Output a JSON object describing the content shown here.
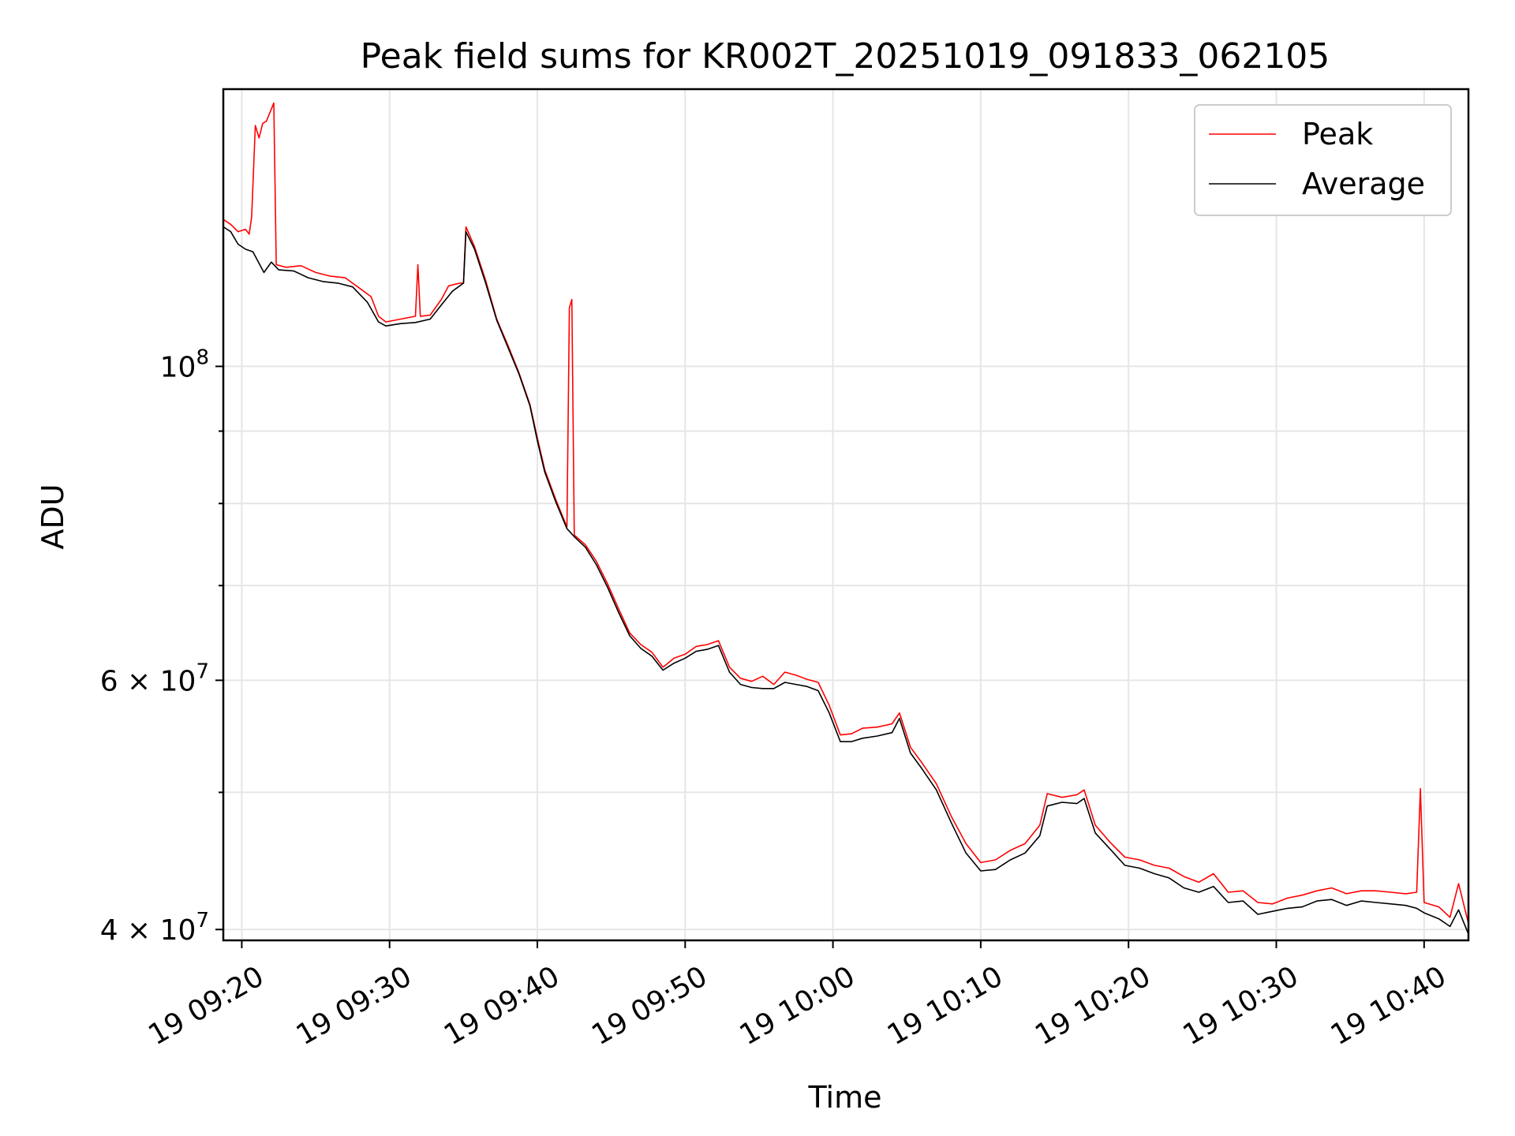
{
  "chart_data": {
    "type": "line",
    "title": "Peak field sums for KR002T_20251019_091833_062105",
    "xlabel": "Time",
    "ylabel": "ADU",
    "yscale": "log",
    "grid": true,
    "legend_position": "top-right",
    "xlim": [
      "2025-10-19T09:18:45",
      "2025-10-19T10:43:00"
    ],
    "ylim": [
      39300000,
      157000000
    ],
    "x_ticks": [
      {
        "t": "2025-10-19T09:20",
        "label": "19 09:20"
      },
      {
        "t": "2025-10-19T09:30",
        "label": "19 09:30"
      },
      {
        "t": "2025-10-19T09:40",
        "label": "19 09:40"
      },
      {
        "t": "2025-10-19T09:50",
        "label": "19 09:50"
      },
      {
        "t": "2025-10-19T10:00",
        "label": "19 10:00"
      },
      {
        "t": "2025-10-19T10:10",
        "label": "19 10:10"
      },
      {
        "t": "2025-10-19T10:20",
        "label": "19 10:20"
      },
      {
        "t": "2025-10-19T10:30",
        "label": "19 10:30"
      },
      {
        "t": "2025-10-19T10:40",
        "label": "19 10:40"
      }
    ],
    "y_ticks": [
      {
        "value": 100000000,
        "base": "10",
        "exp": "8",
        "mant": ""
      },
      {
        "value": 60000000,
        "base": "10",
        "exp": "7",
        "mant": "6 × "
      },
      {
        "value": 40000000,
        "base": "10",
        "exp": "7",
        "mant": "4 × "
      }
    ],
    "y_minor_ticks": [
      50000000,
      70000000,
      80000000,
      90000000
    ],
    "series": [
      {
        "name": "Peak",
        "color": "#ff0000",
        "points": [
          [
            "2025-10-19T09:18:45",
            127000000
          ],
          [
            "2025-10-19T09:19:15",
            126000000
          ],
          [
            "2025-10-19T09:19:45",
            124500000
          ],
          [
            "2025-10-19T09:20:15",
            125000000
          ],
          [
            "2025-10-19T09:20:30",
            124000000
          ],
          [
            "2025-10-19T09:20:40",
            127500000
          ],
          [
            "2025-10-19T09:20:55",
            148000000
          ],
          [
            "2025-10-19T09:21:10",
            145000000
          ],
          [
            "2025-10-19T09:21:25",
            148500000
          ],
          [
            "2025-10-19T09:21:40",
            149000000
          ],
          [
            "2025-10-19T09:22:00",
            152000000
          ],
          [
            "2025-10-19T09:22:10",
            153500000
          ],
          [
            "2025-10-19T09:22:20",
            118000000
          ],
          [
            "2025-10-19T09:23:00",
            117500000
          ],
          [
            "2025-10-19T09:24:00",
            117800000
          ],
          [
            "2025-10-19T09:25:00",
            116500000
          ],
          [
            "2025-10-19T09:26:00",
            115800000
          ],
          [
            "2025-10-19T09:27:00",
            115500000
          ],
          [
            "2025-10-19T09:28:00",
            113500000
          ],
          [
            "2025-10-19T09:28:45",
            112000000
          ],
          [
            "2025-10-19T09:29:15",
            108500000
          ],
          [
            "2025-10-19T09:29:45",
            107500000
          ],
          [
            "2025-10-19T09:30:45",
            108000000
          ],
          [
            "2025-10-19T09:31:45",
            108500000
          ],
          [
            "2025-10-19T09:31:55",
            118000000
          ],
          [
            "2025-10-19T09:32:05",
            108500000
          ],
          [
            "2025-10-19T09:32:45",
            108700000
          ],
          [
            "2025-10-19T09:33:30",
            111500000
          ],
          [
            "2025-10-19T09:34:00",
            114000000
          ],
          [
            "2025-10-19T09:34:45",
            114500000
          ],
          [
            "2025-10-19T09:35:00",
            114500000
          ],
          [
            "2025-10-19T09:35:10",
            125500000
          ],
          [
            "2025-10-19T09:35:45",
            121500000
          ],
          [
            "2025-10-19T09:36:30",
            115000000
          ],
          [
            "2025-10-19T09:37:15",
            108000000
          ],
          [
            "2025-10-19T09:38:00",
            103500000
          ],
          [
            "2025-10-19T09:38:45",
            99000000
          ],
          [
            "2025-10-19T09:39:30",
            94000000
          ],
          [
            "2025-10-19T09:40:00",
            89000000
          ],
          [
            "2025-10-19T09:40:30",
            84500000
          ],
          [
            "2025-10-19T09:41:15",
            80500000
          ],
          [
            "2025-10-19T09:42:00",
            77000000
          ],
          [
            "2025-10-19T09:42:10",
            110000000
          ],
          [
            "2025-10-19T09:42:20",
            111500000
          ],
          [
            "2025-10-19T09:42:30",
            76000000
          ],
          [
            "2025-10-19T09:43:15",
            74800000
          ],
          [
            "2025-10-19T09:44:00",
            72800000
          ],
          [
            "2025-10-19T09:44:45",
            70200000
          ],
          [
            "2025-10-19T09:45:30",
            67400000
          ],
          [
            "2025-10-19T09:46:15",
            64800000
          ],
          [
            "2025-10-19T09:47:00",
            63600000
          ],
          [
            "2025-10-19T09:47:45",
            62800000
          ],
          [
            "2025-10-19T09:48:30",
            61300000
          ],
          [
            "2025-10-19T09:49:15",
            62200000
          ],
          [
            "2025-10-19T09:50:00",
            62600000
          ],
          [
            "2025-10-19T09:50:45",
            63400000
          ],
          [
            "2025-10-19T09:51:30",
            63600000
          ],
          [
            "2025-10-19T09:52:15",
            64000000
          ],
          [
            "2025-10-19T09:53:00",
            61300000
          ],
          [
            "2025-10-19T09:53:45",
            60200000
          ],
          [
            "2025-10-19T09:54:30",
            59900000
          ],
          [
            "2025-10-19T09:55:15",
            60400000
          ],
          [
            "2025-10-19T09:56:00",
            59600000
          ],
          [
            "2025-10-19T09:56:45",
            60800000
          ],
          [
            "2025-10-19T09:57:30",
            60500000
          ],
          [
            "2025-10-19T09:58:15",
            60100000
          ],
          [
            "2025-10-19T09:59:00",
            59800000
          ],
          [
            "2025-10-19T09:59:45",
            57600000
          ],
          [
            "2025-10-19T10:00:30",
            54900000
          ],
          [
            "2025-10-19T10:01:15",
            55000000
          ],
          [
            "2025-10-19T10:02:00",
            55500000
          ],
          [
            "2025-10-19T10:03:00",
            55600000
          ],
          [
            "2025-10-19T10:04:00",
            55900000
          ],
          [
            "2025-10-19T10:04:30",
            56900000
          ],
          [
            "2025-10-19T10:05:15",
            53800000
          ],
          [
            "2025-10-19T10:06:00",
            52500000
          ],
          [
            "2025-10-19T10:07:00",
            50700000
          ],
          [
            "2025-10-19T10:08:00",
            48100000
          ],
          [
            "2025-10-19T10:09:00",
            46000000
          ],
          [
            "2025-10-19T10:10:00",
            44600000
          ],
          [
            "2025-10-19T10:11:00",
            44800000
          ],
          [
            "2025-10-19T10:12:00",
            45500000
          ],
          [
            "2025-10-19T10:13:00",
            46000000
          ],
          [
            "2025-10-19T10:14:00",
            47400000
          ],
          [
            "2025-10-19T10:14:30",
            49900000
          ],
          [
            "2025-10-19T10:15:30",
            49600000
          ],
          [
            "2025-10-19T10:16:30",
            49800000
          ],
          [
            "2025-10-19T10:17:00",
            50200000
          ],
          [
            "2025-10-19T10:17:45",
            47400000
          ],
          [
            "2025-10-19T10:18:45",
            46100000
          ],
          [
            "2025-10-19T10:19:45",
            45000000
          ],
          [
            "2025-10-19T10:20:45",
            44800000
          ],
          [
            "2025-10-19T10:21:45",
            44400000
          ],
          [
            "2025-10-19T10:22:45",
            44200000
          ],
          [
            "2025-10-19T10:23:45",
            43600000
          ],
          [
            "2025-10-19T10:24:45",
            43200000
          ],
          [
            "2025-10-19T10:25:45",
            43800000
          ],
          [
            "2025-10-19T10:26:45",
            42500000
          ],
          [
            "2025-10-19T10:27:45",
            42600000
          ],
          [
            "2025-10-19T10:28:45",
            41800000
          ],
          [
            "2025-10-19T10:29:45",
            41700000
          ],
          [
            "2025-10-19T10:30:45",
            42100000
          ],
          [
            "2025-10-19T10:31:45",
            42300000
          ],
          [
            "2025-10-19T10:32:45",
            42600000
          ],
          [
            "2025-10-19T10:33:45",
            42800000
          ],
          [
            "2025-10-19T10:34:45",
            42400000
          ],
          [
            "2025-10-19T10:35:45",
            42600000
          ],
          [
            "2025-10-19T10:36:45",
            42600000
          ],
          [
            "2025-10-19T10:37:45",
            42500000
          ],
          [
            "2025-10-19T10:38:45",
            42400000
          ],
          [
            "2025-10-19T10:39:30",
            42500000
          ],
          [
            "2025-10-19T10:39:45",
            50300000
          ],
          [
            "2025-10-19T10:40:00",
            41800000
          ],
          [
            "2025-10-19T10:41:00",
            41500000
          ],
          [
            "2025-10-19T10:41:45",
            40800000
          ],
          [
            "2025-10-19T10:42:20",
            43100000
          ],
          [
            "2025-10-19T10:43:00",
            40400000
          ]
        ]
      },
      {
        "name": "Average",
        "color": "#000000",
        "points": [
          [
            "2025-10-19T09:18:45",
            125500000
          ],
          [
            "2025-10-19T09:19:15",
            124500000
          ],
          [
            "2025-10-19T09:19:45",
            122000000
          ],
          [
            "2025-10-19T09:20:15",
            121000000
          ],
          [
            "2025-10-19T09:20:45",
            120500000
          ],
          [
            "2025-10-19T09:21:30",
            116500000
          ],
          [
            "2025-10-19T09:22:00",
            118500000
          ],
          [
            "2025-10-19T09:22:30",
            117000000
          ],
          [
            "2025-10-19T09:23:30",
            116800000
          ],
          [
            "2025-10-19T09:24:30",
            115500000
          ],
          [
            "2025-10-19T09:25:30",
            114800000
          ],
          [
            "2025-10-19T09:26:30",
            114500000
          ],
          [
            "2025-10-19T09:27:30",
            113800000
          ],
          [
            "2025-10-19T09:28:30",
            111000000
          ],
          [
            "2025-10-19T09:29:15",
            107500000
          ],
          [
            "2025-10-19T09:29:45",
            106800000
          ],
          [
            "2025-10-19T09:30:45",
            107200000
          ],
          [
            "2025-10-19T09:31:45",
            107400000
          ],
          [
            "2025-10-19T09:32:45",
            108000000
          ],
          [
            "2025-10-19T09:33:30",
            110500000
          ],
          [
            "2025-10-19T09:34:15",
            113000000
          ],
          [
            "2025-10-19T09:35:00",
            114500000
          ],
          [
            "2025-10-19T09:35:10",
            124500000
          ],
          [
            "2025-10-19T09:35:45",
            121000000
          ],
          [
            "2025-10-19T09:36:30",
            114500000
          ],
          [
            "2025-10-19T09:37:15",
            107800000
          ],
          [
            "2025-10-19T09:38:00",
            103200000
          ],
          [
            "2025-10-19T09:38:45",
            98800000
          ],
          [
            "2025-10-19T09:39:30",
            93800000
          ],
          [
            "2025-10-19T09:40:00",
            88600000
          ],
          [
            "2025-10-19T09:40:30",
            84200000
          ],
          [
            "2025-10-19T09:41:15",
            80200000
          ],
          [
            "2025-10-19T09:42:00",
            76800000
          ],
          [
            "2025-10-19T09:42:30",
            75800000
          ],
          [
            "2025-10-19T09:43:15",
            74500000
          ],
          [
            "2025-10-19T09:44:00",
            72400000
          ],
          [
            "2025-10-19T09:44:45",
            69800000
          ],
          [
            "2025-10-19T09:45:30",
            67000000
          ],
          [
            "2025-10-19T09:46:15",
            64500000
          ],
          [
            "2025-10-19T09:47:00",
            63200000
          ],
          [
            "2025-10-19T09:47:45",
            62400000
          ],
          [
            "2025-10-19T09:48:30",
            61000000
          ],
          [
            "2025-10-19T09:49:15",
            61700000
          ],
          [
            "2025-10-19T09:50:00",
            62200000
          ],
          [
            "2025-10-19T09:50:45",
            62900000
          ],
          [
            "2025-10-19T09:51:30",
            63100000
          ],
          [
            "2025-10-19T09:52:15",
            63500000
          ],
          [
            "2025-10-19T09:53:00",
            60800000
          ],
          [
            "2025-10-19T09:53:45",
            59600000
          ],
          [
            "2025-10-19T09:54:30",
            59300000
          ],
          [
            "2025-10-19T09:55:15",
            59200000
          ],
          [
            "2025-10-19T09:56:00",
            59200000
          ],
          [
            "2025-10-19T09:56:45",
            59800000
          ],
          [
            "2025-10-19T09:57:30",
            59600000
          ],
          [
            "2025-10-19T09:58:15",
            59400000
          ],
          [
            "2025-10-19T09:59:00",
            59000000
          ],
          [
            "2025-10-19T09:59:45",
            56900000
          ],
          [
            "2025-10-19T10:00:30",
            54300000
          ],
          [
            "2025-10-19T10:01:15",
            54300000
          ],
          [
            "2025-10-19T10:02:00",
            54600000
          ],
          [
            "2025-10-19T10:03:00",
            54800000
          ],
          [
            "2025-10-19T10:04:00",
            55100000
          ],
          [
            "2025-10-19T10:04:30",
            56400000
          ],
          [
            "2025-10-19T10:05:15",
            53300000
          ],
          [
            "2025-10-19T10:06:00",
            52000000
          ],
          [
            "2025-10-19T10:07:00",
            50200000
          ],
          [
            "2025-10-19T10:08:00",
            47600000
          ],
          [
            "2025-10-19T10:09:00",
            45300000
          ],
          [
            "2025-10-19T10:10:00",
            44000000
          ],
          [
            "2025-10-19T10:11:00",
            44100000
          ],
          [
            "2025-10-19T10:12:00",
            44800000
          ],
          [
            "2025-10-19T10:13:00",
            45300000
          ],
          [
            "2025-10-19T10:14:00",
            46600000
          ],
          [
            "2025-10-19T10:14:30",
            48900000
          ],
          [
            "2025-10-19T10:15:30",
            49200000
          ],
          [
            "2025-10-19T10:16:30",
            49100000
          ],
          [
            "2025-10-19T10:17:00",
            49500000
          ],
          [
            "2025-10-19T10:17:45",
            46800000
          ],
          [
            "2025-10-19T10:18:45",
            45600000
          ],
          [
            "2025-10-19T10:19:45",
            44400000
          ],
          [
            "2025-10-19T10:20:45",
            44200000
          ],
          [
            "2025-10-19T10:21:45",
            43800000
          ],
          [
            "2025-10-19T10:22:45",
            43500000
          ],
          [
            "2025-10-19T10:23:45",
            42800000
          ],
          [
            "2025-10-19T10:24:45",
            42500000
          ],
          [
            "2025-10-19T10:25:45",
            42900000
          ],
          [
            "2025-10-19T10:26:45",
            41800000
          ],
          [
            "2025-10-19T10:27:45",
            41900000
          ],
          [
            "2025-10-19T10:28:45",
            41000000
          ],
          [
            "2025-10-19T10:29:45",
            41200000
          ],
          [
            "2025-10-19T10:30:45",
            41400000
          ],
          [
            "2025-10-19T10:31:45",
            41500000
          ],
          [
            "2025-10-19T10:32:45",
            41900000
          ],
          [
            "2025-10-19T10:33:45",
            42000000
          ],
          [
            "2025-10-19T10:34:45",
            41600000
          ],
          [
            "2025-10-19T10:35:45",
            41900000
          ],
          [
            "2025-10-19T10:36:45",
            41800000
          ],
          [
            "2025-10-19T10:37:45",
            41700000
          ],
          [
            "2025-10-19T10:38:45",
            41600000
          ],
          [
            "2025-10-19T10:39:30",
            41400000
          ],
          [
            "2025-10-19T10:40:00",
            41100000
          ],
          [
            "2025-10-19T10:41:00",
            40700000
          ],
          [
            "2025-10-19T10:41:45",
            40200000
          ],
          [
            "2025-10-19T10:42:20",
            41300000
          ],
          [
            "2025-10-19T10:43:00",
            39700000
          ]
        ]
      }
    ]
  }
}
